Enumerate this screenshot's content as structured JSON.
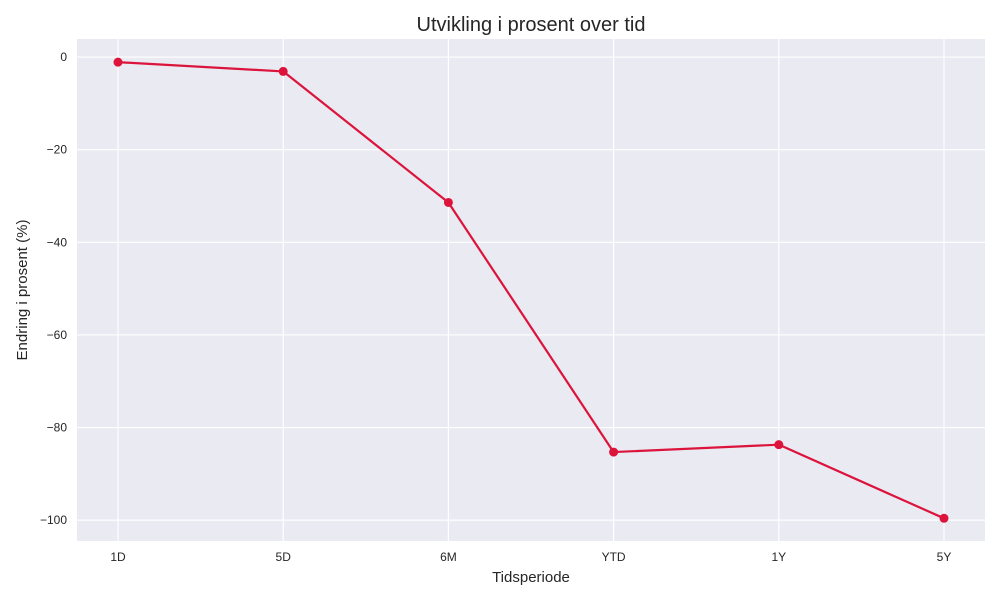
{
  "chart_data": {
    "type": "line",
    "title": "Utvikling i prosent over tid",
    "xlabel": "Tidsperiode",
    "ylabel": "Endring i prosent (%)",
    "categories": [
      "1D",
      "5D",
      "6M",
      "YTD",
      "1Y",
      "5Y"
    ],
    "series": [
      {
        "name": "",
        "values": [
          -1.1,
          -3.1,
          -31.4,
          -85.3,
          -83.7,
          -99.6
        ],
        "color": "#dc143c",
        "marker": "circle"
      }
    ],
    "ylim": [
      -104.5,
      3.9
    ],
    "yticks": [
      0,
      -20,
      -40,
      -60,
      -80,
      -100
    ],
    "ytick_labels": [
      "0",
      "−20",
      "−40",
      "−60",
      "−80",
      "−100"
    ],
    "grid": true,
    "style": {
      "plot_background": "#eaeaf2",
      "grid_color": "#ffffff",
      "text_color": "#262626"
    }
  }
}
